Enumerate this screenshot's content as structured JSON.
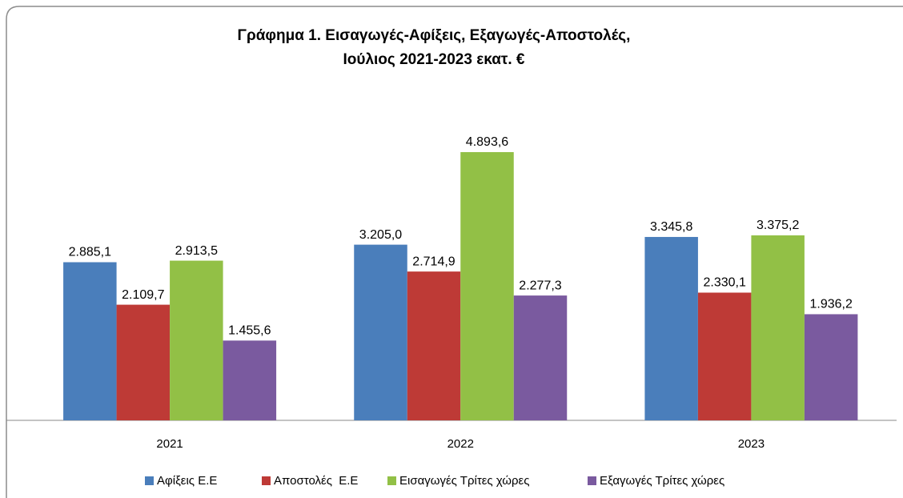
{
  "chart_data": {
    "type": "bar",
    "title": [
      "Γράφημα 1. Εισαγωγές-Αφίξεις, Εξαγωγές-Αποστολές,",
      "Ιούλιος 2021-2023 εκατ. €"
    ],
    "categories": [
      "2021",
      "2022",
      "2023"
    ],
    "series": [
      {
        "name": "Αφίξεις Ε.Ε",
        "color": "#4a7ebb",
        "values": [
          2885.1,
          3205.0,
          3345.8
        ],
        "value_labels": [
          "2.885,1",
          "3.205,0",
          "3.345,8"
        ]
      },
      {
        "name": "Αποστολές  Ε.Ε",
        "color": "#be3a36",
        "values": [
          2109.7,
          2714.9,
          2330.1
        ],
        "value_labels": [
          "2.109,7",
          "2.714,9",
          "2.330,1"
        ]
      },
      {
        "name": "Εισαγωγές Τρίτες χώρες",
        "color": "#92c046",
        "values": [
          2913.5,
          4893.6,
          3375.2
        ],
        "value_labels": [
          "2.913,5",
          "4.893,6",
          "3.375,2"
        ]
      },
      {
        "name": "Εξαγωγές Τρίτες χώρες",
        "color": "#7a5a9f",
        "values": [
          1455.6,
          2277.3,
          1936.2
        ],
        "value_labels": [
          "1.455,6",
          "2.277,3",
          "1.936,2"
        ]
      }
    ],
    "legend": "bottom"
  }
}
